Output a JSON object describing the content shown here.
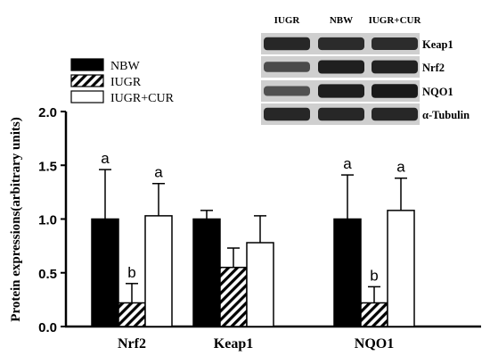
{
  "chart_data": {
    "type": "bar",
    "title": "",
    "xlabel": "",
    "ylabel": "Protein expressions(arbitrary units)",
    "ylim": [
      0,
      2.0
    ],
    "yticks": [
      "0.0",
      "0.5",
      "1.0",
      "1.5",
      "2.0"
    ],
    "categories": [
      "Nrf2",
      "Keap1",
      "NQO1"
    ],
    "legend_position": "top-left",
    "grid": false,
    "series": [
      {
        "name": "NBW",
        "fill": "solid-black",
        "values": [
          1.0,
          1.0,
          1.0
        ],
        "errors": [
          0.46,
          0.08,
          0.41
        ],
        "annotations": [
          "a",
          "",
          "a"
        ]
      },
      {
        "name": "IUGR",
        "fill": "diagonal-hatch",
        "values": [
          0.22,
          0.55,
          0.22
        ],
        "errors": [
          0.18,
          0.18,
          0.15
        ],
        "annotations": [
          "b",
          "",
          "b"
        ]
      },
      {
        "name": "IUGR+CUR",
        "fill": "white",
        "values": [
          1.03,
          0.78,
          1.08
        ],
        "errors": [
          0.3,
          0.25,
          0.3
        ],
        "annotations": [
          "a",
          "",
          "a"
        ]
      }
    ]
  },
  "blot": {
    "lane_labels": [
      "IUGR",
      "NBW",
      "IUGR+CUR"
    ],
    "bands": [
      {
        "label": "Keap1",
        "intensity": [
          0.85,
          0.82,
          0.8
        ]
      },
      {
        "label": "Nrf2",
        "intensity": [
          0.55,
          0.9,
          0.88
        ]
      },
      {
        "label": "NQO1",
        "intensity": [
          0.5,
          0.92,
          0.95
        ]
      },
      {
        "label": "α-Tubulin",
        "intensity": [
          0.85,
          0.85,
          0.85
        ]
      }
    ]
  },
  "colors": {
    "bar_black": "#000000",
    "bar_white": "#ffffff",
    "blot_background": "#cfcfcf",
    "band_dark": "#141414"
  }
}
